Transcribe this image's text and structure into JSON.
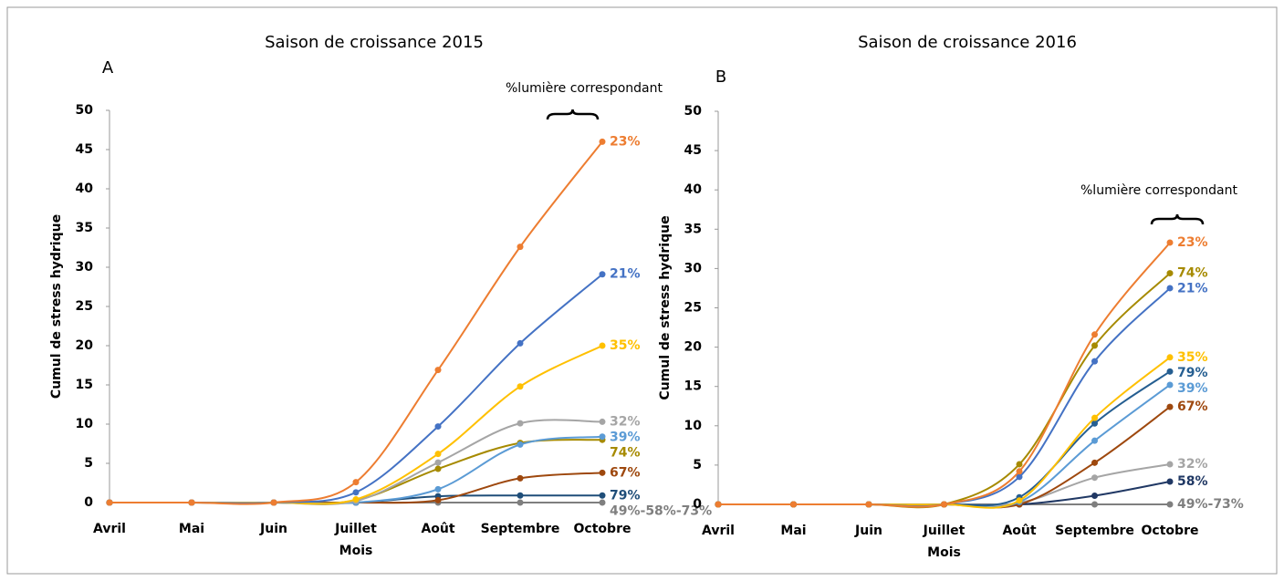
{
  "chart_data": [
    {
      "type": "line",
      "title": "Saison de croissance 2015",
      "annotations": [
        "A",
        "%lumière correspondant"
      ],
      "x_label": "Mois",
      "y_label": "Cumul de stress hydrique",
      "categories": [
        "Avril",
        "Mai",
        "Juin",
        "Juillet",
        "Août",
        "Septembre",
        "Octobre"
      ],
      "ylim": [
        0,
        50
      ],
      "yticks": [
        0,
        5,
        10,
        15,
        20,
        25,
        30,
        35,
        40,
        45,
        50
      ],
      "series": [
        {
          "name": "23%",
          "color": "#ED7D31",
          "values": [
            0,
            0,
            0,
            2.6,
            16.9,
            32.6,
            46
          ]
        },
        {
          "name": "21%",
          "color": "#4472C4",
          "values": [
            0,
            0,
            0,
            1.3,
            9.7,
            20.3,
            29.1
          ]
        },
        {
          "name": "35%",
          "color": "#FFC000",
          "values": [
            0,
            0,
            0,
            0.4,
            6.2,
            14.8,
            20
          ]
        },
        {
          "name": "32%",
          "color": "#A5A5A5",
          "values": [
            0,
            0,
            0,
            0.2,
            5.1,
            10.1,
            10.3
          ]
        },
        {
          "name": "39%",
          "color": "#5B9BD5",
          "values": [
            0,
            0,
            0,
            0,
            1.7,
            7.4,
            8.4
          ]
        },
        {
          "name": "74%",
          "color": "#A68A00",
          "values": [
            0,
            0,
            0,
            0.3,
            4.3,
            7.6,
            8
          ]
        },
        {
          "name": "67%",
          "color": "#9E480E",
          "values": [
            0,
            0,
            0,
            0,
            0.3,
            3.1,
            3.8
          ]
        },
        {
          "name": "79%",
          "color": "#1F4E79",
          "values": [
            0,
            0,
            0,
            0,
            0.8,
            0.9,
            0.9
          ]
        },
        {
          "name": "49%-58%-73%",
          "color": "#7F7F7F",
          "values": [
            0,
            0,
            0,
            0,
            0,
            0,
            0
          ]
        }
      ]
    },
    {
      "type": "line",
      "title": "Saison de croissance 2016",
      "annotations": [
        "B",
        "%lumière correspondant"
      ],
      "x_label": "Mois",
      "y_label": "Cumul de stress hydrique",
      "categories": [
        "Avril",
        "Mai",
        "Juin",
        "Juillet",
        "Août",
        "Septembre",
        "Octobre"
      ],
      "ylim": [
        0,
        50
      ],
      "yticks": [
        0,
        5,
        10,
        15,
        20,
        25,
        30,
        35,
        40,
        45,
        50
      ],
      "series": [
        {
          "name": "23%",
          "color": "#ED7D31",
          "values": [
            0,
            0,
            0,
            0,
            4.2,
            21.6,
            33.3
          ]
        },
        {
          "name": "74%",
          "color": "#A68A00",
          "values": [
            0,
            0,
            0,
            0,
            5.1,
            20.2,
            29.4
          ]
        },
        {
          "name": "21%",
          "color": "#4472C4",
          "values": [
            0,
            0,
            0,
            0,
            3.5,
            18.2,
            27.5
          ]
        },
        {
          "name": "35%",
          "color": "#FFC000",
          "values": [
            0,
            0,
            0,
            0,
            0.5,
            11,
            18.7
          ]
        },
        {
          "name": "79%",
          "color": "#255E91",
          "values": [
            0,
            0,
            0,
            0,
            0.9,
            10.3,
            16.9
          ]
        },
        {
          "name": "39%",
          "color": "#5B9BD5",
          "values": [
            0,
            0,
            0,
            0,
            0.3,
            8.1,
            15.2
          ]
        },
        {
          "name": "67%",
          "color": "#9E480E",
          "values": [
            0,
            0,
            0,
            0,
            0,
            5.3,
            12.4
          ]
        },
        {
          "name": "32%",
          "color": "#A5A5A5",
          "values": [
            0,
            0,
            0,
            0,
            0.2,
            3.4,
            5.1
          ]
        },
        {
          "name": "58%",
          "color": "#203864",
          "values": [
            0,
            0,
            0,
            0,
            0,
            1.1,
            2.9
          ]
        },
        {
          "name": "49%-73%",
          "color": "#7F7F7F",
          "values": [
            0,
            0,
            0,
            0,
            0,
            0,
            0
          ]
        }
      ]
    }
  ]
}
